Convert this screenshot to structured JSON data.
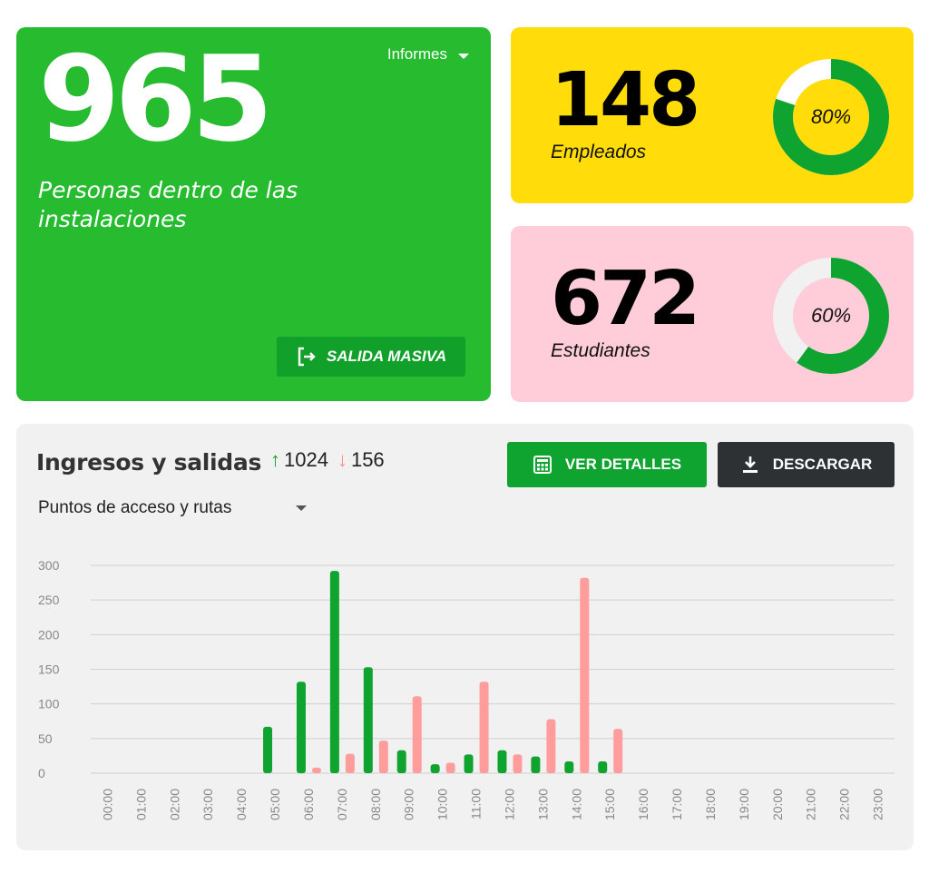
{
  "personas": {
    "count": "965",
    "label": "Personas dentro de las instalaciones",
    "reports_label": "Informes",
    "salida_button": "SALIDA MASIVA",
    "color": "#27bb30"
  },
  "empleados": {
    "count": "148",
    "label": "Empleados",
    "percent_text": "80%",
    "percent": 80,
    "color": "#ffdc0a"
  },
  "estudiantes": {
    "count": "672",
    "label": "Estudiantes",
    "percent_text": "60%",
    "percent": 60,
    "color": "#ffcdd9"
  },
  "traffic": {
    "title": "Ingresos y salidas",
    "ingresos": "1024",
    "salidas": "156",
    "details_button": "VER DETALLES",
    "download_button": "DESCARGAR",
    "filter_value": "Puntos de acceso y rutas"
  },
  "chart_data": {
    "type": "bar",
    "categories": [
      "00:00",
      "01:00",
      "02:00",
      "03:00",
      "04:00",
      "05:00",
      "06:00",
      "07:00",
      "08:00",
      "09:00",
      "10:00",
      "11:00",
      "12:00",
      "13:00",
      "14:00",
      "15:00",
      "16:00",
      "17:00",
      "18:00",
      "19:00",
      "20:00",
      "21:00",
      "22:00",
      "23:00"
    ],
    "series": [
      {
        "values": [
          0,
          0,
          0,
          0,
          0,
          67,
          132,
          292,
          153,
          33,
          13,
          27,
          33,
          24,
          17,
          17,
          0,
          0,
          0,
          0,
          0,
          0,
          0,
          0
        ],
        "color": "#0fa330"
      },
      {
        "values": [
          0,
          0,
          0,
          0,
          0,
          0,
          8,
          28,
          47,
          111,
          15,
          132,
          27,
          78,
          282,
          64,
          0,
          0,
          0,
          0,
          0,
          0,
          0,
          0
        ],
        "color": "#ff9c9c"
      }
    ],
    "yticks": [
      0,
      50,
      100,
      150,
      200,
      250,
      300
    ],
    "ylim": [
      0,
      300
    ],
    "grid": true
  }
}
